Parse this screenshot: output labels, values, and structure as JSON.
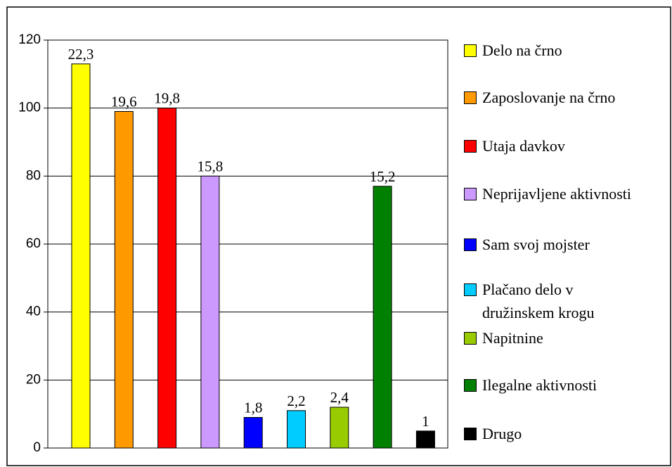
{
  "chart_data": {
    "type": "bar",
    "categories": [
      "Delo na črno",
      "Zaposlovanje na črno",
      "Utaja davkov",
      "Neprijavljene aktivnosti",
      "Sam svoj mojster",
      "Plačano delo v družinskem krogu",
      "Napitnine",
      "Ilegalne aktivnosti",
      "Drugo"
    ],
    "values": [
      113,
      99,
      100,
      80,
      9,
      11,
      12,
      77,
      5
    ],
    "annotations": [
      "22,3",
      "19,6",
      "19,8",
      "15,8",
      "1,8",
      "2,2",
      "2,4",
      "15,2",
      "1"
    ],
    "colors": [
      "#ffff00",
      "#ff9900",
      "#ff0000",
      "#cc99ff",
      "#0000ff",
      "#00ccff",
      "#99cc00",
      "#008000",
      "#000000"
    ],
    "ylim": [
      0,
      120
    ],
    "yticks": [
      0,
      20,
      40,
      60,
      80,
      100,
      120
    ],
    "grid": true,
    "legend": "right"
  }
}
